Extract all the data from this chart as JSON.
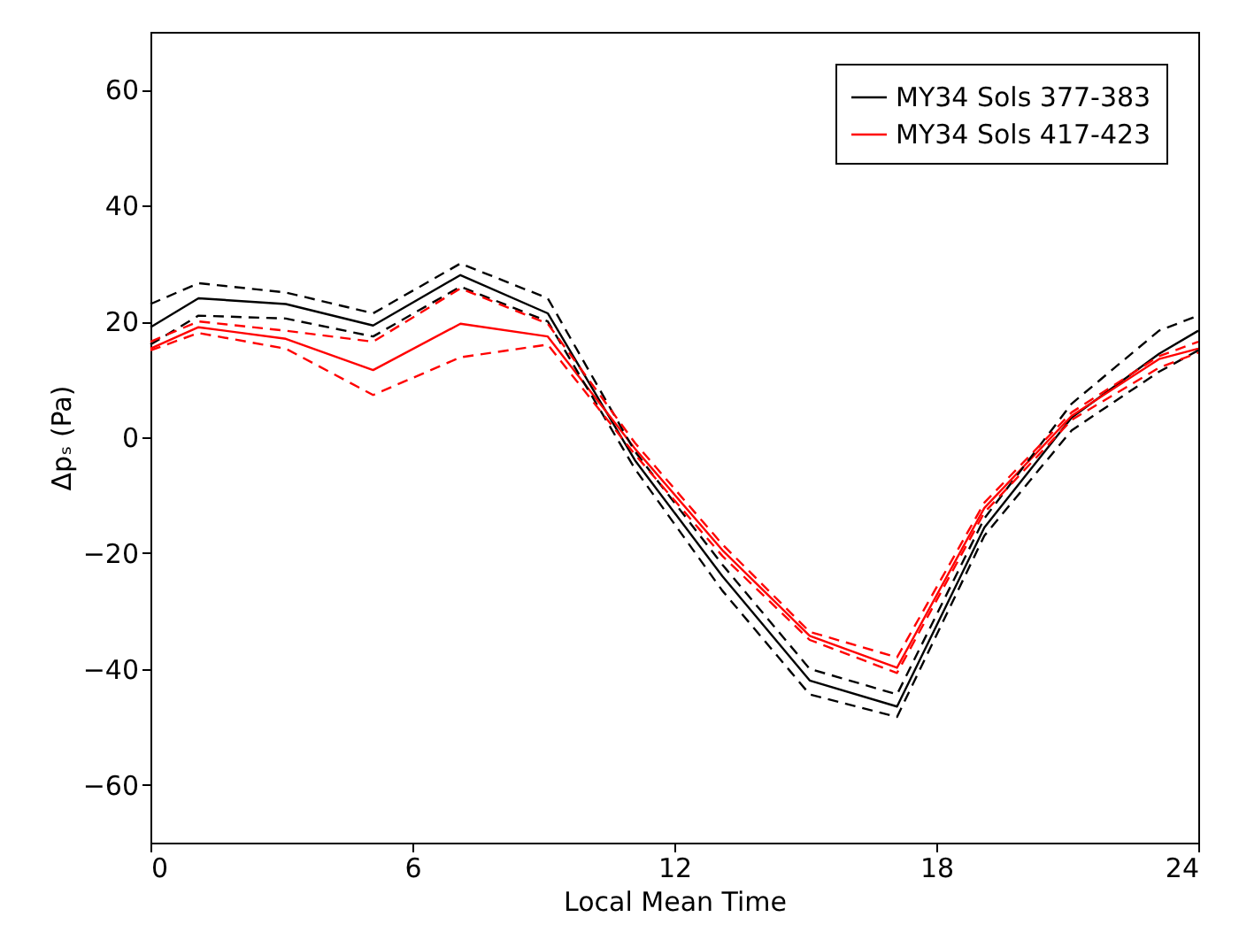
{
  "chart_data": {
    "type": "line",
    "xlabel": "Local Mean Time",
    "ylabel": "Δpₛ (Pa)",
    "x": [
      0,
      1.1,
      3.1,
      5.1,
      7.1,
      9.1,
      11.1,
      13.1,
      15.1,
      17.1,
      19.1,
      21.1,
      23.1,
      24
    ],
    "series": [
      {
        "name": "MY34 Sols 377-383",
        "color": "#000000",
        "values": [
          19,
          24,
          23,
          19.3,
          28,
          21.4,
          -4,
          -24,
          -42,
          -46.5,
          -15.6,
          3.4,
          14.4,
          18.4
        ]
      },
      {
        "name": "MY34 Sols 417-423",
        "color": "#ff0000",
        "values": [
          15.3,
          19,
          17,
          11.6,
          19.6,
          17.4,
          -2,
          -19.5,
          -34.3,
          -39.8,
          -12.2,
          3.7,
          13.5,
          15.3
        ]
      },
      {
        "color": "#000000",
        "line_style": "dashed",
        "values": [
          16,
          21,
          20.5,
          17.4,
          26,
          20,
          -5.5,
          -26.5,
          -44.4,
          -48.3,
          -17,
          1.2,
          11.3,
          15
        ]
      },
      {
        "color": "#000000",
        "line_style": "dashed",
        "values": [
          23,
          26.6,
          25,
          21.4,
          30,
          24,
          -2.5,
          -22,
          -40,
          -44.4,
          -14,
          5.8,
          18.4,
          21
        ]
      },
      {
        "color": "#ff0000",
        "line_style": "dashed",
        "values": [
          15,
          18,
          15.3,
          7.3,
          13.8,
          16,
          -3,
          -20.5,
          -35,
          -40.7,
          -13,
          3,
          12,
          14.6
        ]
      },
      {
        "color": "#ff0000",
        "line_style": "dashed",
        "values": [
          16.5,
          20,
          18.4,
          16.5,
          25.7,
          19.6,
          -1,
          -18.5,
          -33.6,
          -38,
          -11.3,
          4.3,
          14,
          16.5
        ]
      }
    ],
    "xlim": [
      0,
      24
    ],
    "xticks": [
      0,
      6,
      12,
      18,
      24
    ],
    "ylim": [
      -70,
      70
    ],
    "yticks": [
      -60,
      -40,
      -20,
      0,
      20,
      40,
      60
    ],
    "grid": false,
    "legend": "top right",
    "line_style": "solid",
    "marker": "none"
  }
}
